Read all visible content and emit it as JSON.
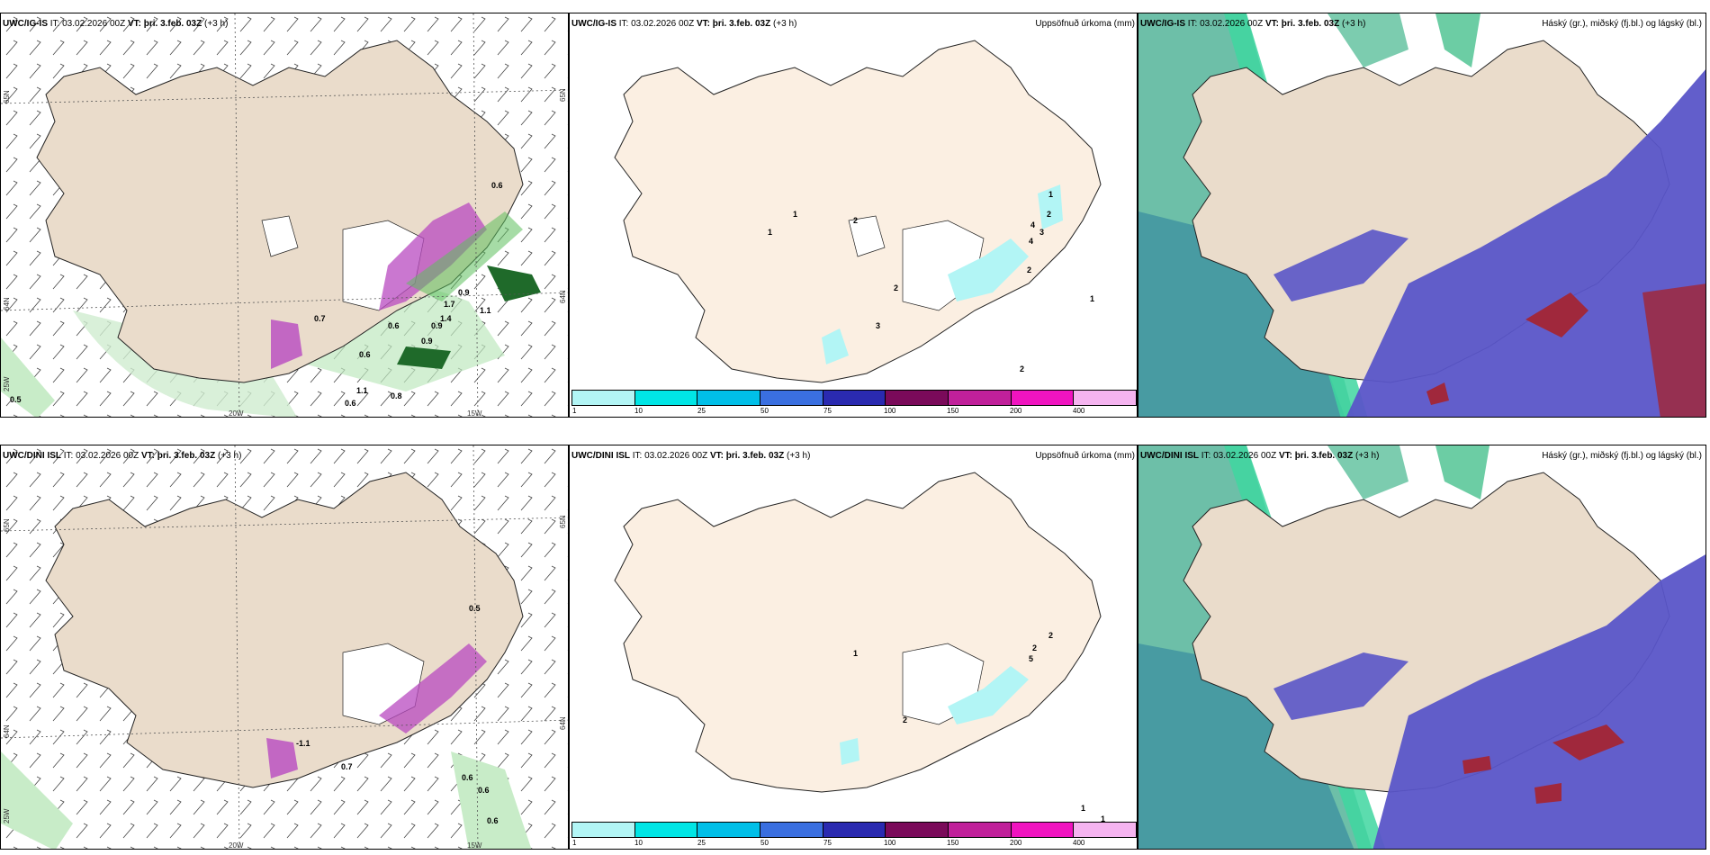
{
  "rows": [
    {
      "model": "UWC/IG-IS",
      "it_label": "IT:",
      "it_value": "03.02.2026 00Z",
      "vt_label": "VT:",
      "vt_value": "þri. 3.feb. 03Z",
      "lead": "(+3 h)"
    },
    {
      "model": "UWC/DINI ISL",
      "it_label": "IT:",
      "it_value": "03.02.2026 00Z",
      "vt_label": "VT:",
      "vt_value": "þri. 3.feb. 03Z",
      "lead": "(+3 h)"
    }
  ],
  "precip_title": "Uppsöfnuð úrkoma (mm)",
  "cloud_title": "Háský (gr.), miðský (fj.bl.) og lágský (bl.)",
  "axis_labels": {
    "lon_20w": "20W",
    "lon_15w": "15W",
    "lat_65n": "65N",
    "lat_64n": "64N",
    "lat_25w": "25W"
  },
  "legend": {
    "ticks": [
      "1",
      "10",
      "25",
      "50",
      "75",
      "100",
      "150",
      "200",
      "400"
    ],
    "colors": [
      "#b2f5f5",
      "#00e5e5",
      "#00bfe8",
      "#3a6fe0",
      "#2a2ab0",
      "#7a0a5a",
      "#c0209a",
      "#f014c0",
      "#f5b4f0"
    ]
  },
  "wind_panel_values_top": [
    "0.6",
    "0.7",
    "0.6",
    "1.1",
    "0.9",
    "1.7",
    "1.4",
    "0.9",
    "0.6",
    "0.9",
    "1.1",
    "0.8",
    "0.6",
    "0.5"
  ],
  "wind_panel_values_bottom": [
    "-1.1",
    "0.7",
    "0.5",
    "0.6",
    "0.6",
    "0.6"
  ],
  "precip_values_top": [
    "1",
    "1",
    "2",
    "2",
    "1",
    "4",
    "3",
    "4",
    "2",
    "2",
    "3",
    "1",
    "2"
  ],
  "precip_values_bottom": [
    "1",
    "2",
    "2",
    "5",
    "2",
    "1",
    "1"
  ],
  "colors": {
    "land": "#eadccb",
    "land_precip": "#fbefe2",
    "ocean_green": "#6dbfa8",
    "cloud_blue": "#5a55c8",
    "cloud_red": "#a0283c"
  }
}
